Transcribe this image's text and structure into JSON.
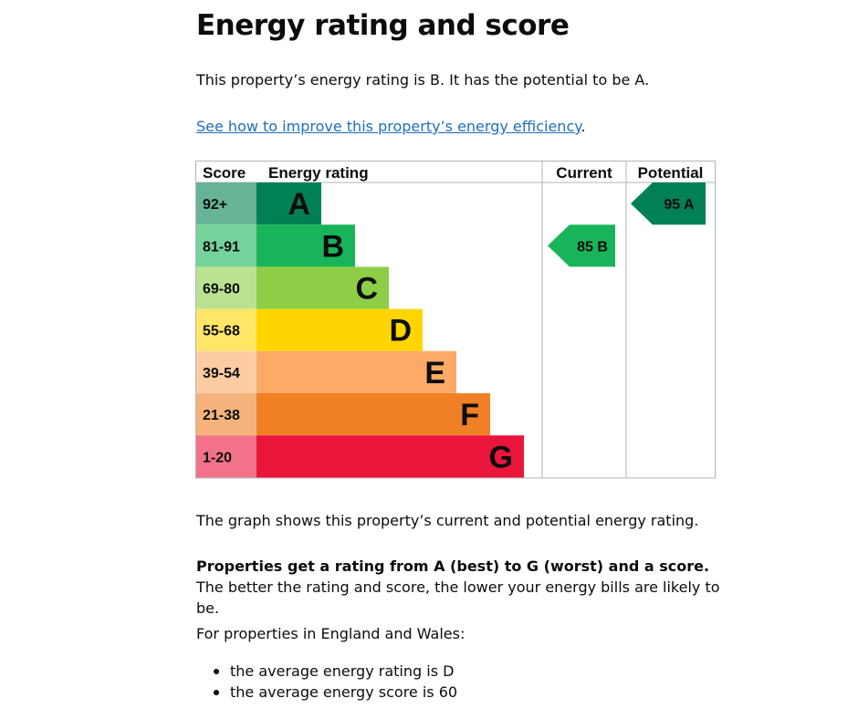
{
  "page": {
    "title": "Energy rating and score",
    "intro": "This property’s energy rating is B. It has the potential to be A.",
    "improve_link": "See how to improve this property’s energy efficiency",
    "improve_suffix": ".",
    "graph_description": "The graph shows this property’s current and potential energy rating.",
    "bands_bold": "Properties get a rating from A (best) to G (worst) and a score.",
    "bands_rest": " The better the rating and score, the lower your energy bills are likely to be.",
    "regions_label": "For properties in England and Wales:",
    "averages": [
      "the average energy rating is D",
      "the average energy score is 60"
    ]
  },
  "chart_data": {
    "type": "bar",
    "headers": {
      "score": "Score",
      "rating": "Energy rating",
      "current": "Current",
      "potential": "Potential"
    },
    "bands": [
      {
        "letter": "A",
        "score": "92+",
        "color": "#008054",
        "score_color": "#66b395"
      },
      {
        "letter": "B",
        "score": "81-91",
        "color": "#19b459",
        "score_color": "#75d29b"
      },
      {
        "letter": "C",
        "score": "69-80",
        "color": "#8dce46",
        "score_color": "#bbe290"
      },
      {
        "letter": "D",
        "score": "55-68",
        "color": "#ffd500",
        "score_color": "#ffe666"
      },
      {
        "letter": "E",
        "score": "39-54",
        "color": "#fcaa65",
        "score_color": "#fdcca3"
      },
      {
        "letter": "F",
        "score": "21-38",
        "color": "#ef8023",
        "score_color": "#f5b37b"
      },
      {
        "letter": "G",
        "score": "1-20",
        "color": "#e9153b",
        "score_color": "#f27389"
      }
    ],
    "current": {
      "score": 85,
      "rating": "B",
      "label": "85  B",
      "color": "#19b459"
    },
    "potential": {
      "score": 95,
      "rating": "A",
      "label": "95  A",
      "color": "#008054"
    }
  }
}
